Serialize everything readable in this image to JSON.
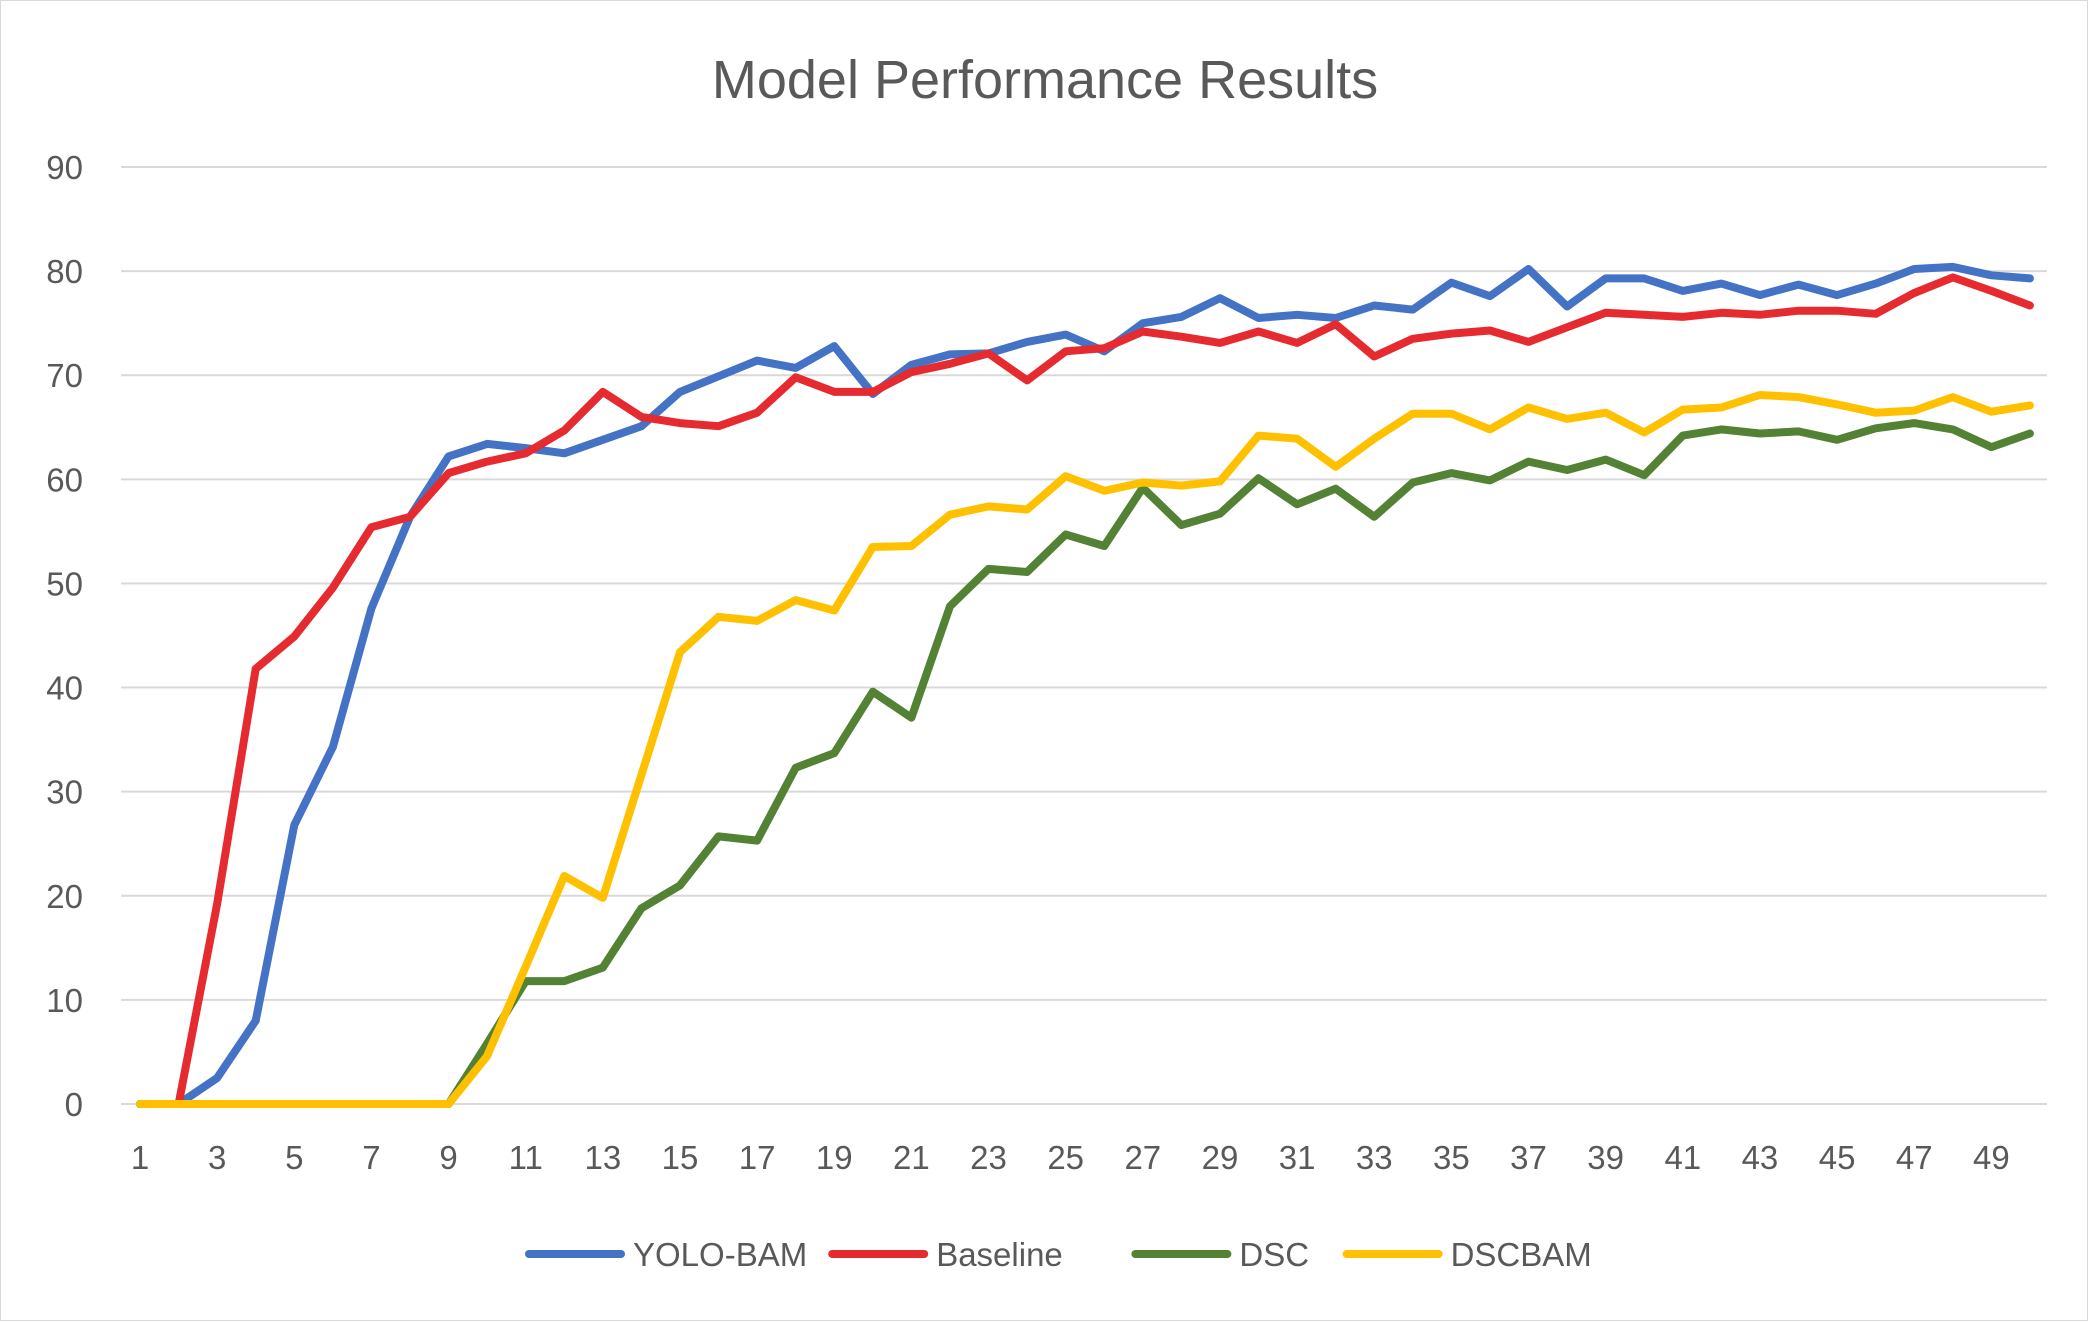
{
  "chart_data": {
    "type": "line",
    "title": "Model Performance Results",
    "xlabel": "",
    "ylabel": "",
    "ylim": [
      0,
      90
    ],
    "ytick_step": 10,
    "x": [
      1,
      2,
      3,
      4,
      5,
      6,
      7,
      8,
      9,
      10,
      11,
      12,
      13,
      14,
      15,
      16,
      17,
      18,
      19,
      20,
      21,
      22,
      23,
      24,
      25,
      26,
      27,
      28,
      29,
      30,
      31,
      32,
      33,
      34,
      35,
      36,
      37,
      38,
      39,
      40,
      41,
      42,
      43,
      44,
      45,
      46,
      47,
      48,
      49,
      50
    ],
    "x_tick_labels": [
      1,
      3,
      5,
      7,
      9,
      11,
      13,
      15,
      17,
      19,
      21,
      23,
      25,
      27,
      29,
      31,
      33,
      35,
      37,
      39,
      41,
      43,
      45,
      47,
      49
    ],
    "grid": true,
    "legend_position": "bottom",
    "series": [
      {
        "name": "YOLO-BAM",
        "color": "#4472c4",
        "values": [
          0,
          0,
          2.5,
          8,
          26.8,
          34.3,
          47.6,
          56.4,
          62.2,
          63.4,
          63,
          62.5,
          63.8,
          65.1,
          68.4,
          69.9,
          71.4,
          70.7,
          72.8,
          68.2,
          71,
          72,
          72.1,
          73.2,
          73.9,
          72.3,
          75,
          75.6,
          77.4,
          75.5,
          75.8,
          75.5,
          76.7,
          76.3,
          78.9,
          77.6,
          80.2,
          76.6,
          79.3,
          79.3,
          78.1,
          78.8,
          77.7,
          78.7,
          77.7,
          78.8,
          80.2,
          80.4,
          79.6,
          79.3
        ]
      },
      {
        "name": "Baseline",
        "color": "#e52b2f",
        "values": [
          0,
          0,
          19.2,
          41.8,
          44.9,
          49.6,
          55.4,
          56.4,
          60.6,
          61.7,
          62.5,
          64.7,
          68.4,
          66,
          65.4,
          65.1,
          66.4,
          69.8,
          68.4,
          68.4,
          70.3,
          71.1,
          72.1,
          69.5,
          72.3,
          72.6,
          74.2,
          73.7,
          73.1,
          74.2,
          73.1,
          74.9,
          71.8,
          73.5,
          74,
          74.3,
          73.2,
          74.6,
          76,
          75.8,
          75.6,
          76,
          75.8,
          76.2,
          76.2,
          75.9,
          77.9,
          79.4,
          78.1,
          76.7
        ]
      },
      {
        "name": "DSC",
        "color": "#548235",
        "values": [
          0,
          0,
          0,
          0,
          0,
          0,
          0,
          0,
          0,
          5.8,
          11.8,
          11.8,
          13.1,
          18.8,
          21,
          25.7,
          25.3,
          32.3,
          33.7,
          39.6,
          37.1,
          47.8,
          51.4,
          51.1,
          54.7,
          53.6,
          59.2,
          55.6,
          56.7,
          60.1,
          57.6,
          59.1,
          56.4,
          59.7,
          60.6,
          59.9,
          61.7,
          60.9,
          61.9,
          60.4,
          64.2,
          64.8,
          64.4,
          64.6,
          63.8,
          64.9,
          65.4,
          64.8,
          63.1,
          64.4
        ]
      },
      {
        "name": "DSCBAM",
        "color": "#ffc000",
        "values": [
          0,
          0,
          0,
          0,
          0,
          0,
          0,
          0,
          0,
          4.6,
          13.2,
          21.9,
          19.8,
          31.6,
          43.4,
          46.8,
          46.4,
          48.4,
          47.4,
          53.5,
          53.6,
          56.6,
          57.4,
          57.1,
          60.3,
          58.9,
          59.7,
          59.4,
          59.8,
          64.2,
          63.9,
          61.2,
          63.9,
          66.3,
          66.3,
          64.8,
          66.9,
          65.8,
          66.4,
          64.5,
          66.7,
          66.9,
          68.1,
          67.9,
          67.2,
          66.4,
          66.6,
          67.9,
          66.5,
          67.1
        ]
      }
    ]
  }
}
